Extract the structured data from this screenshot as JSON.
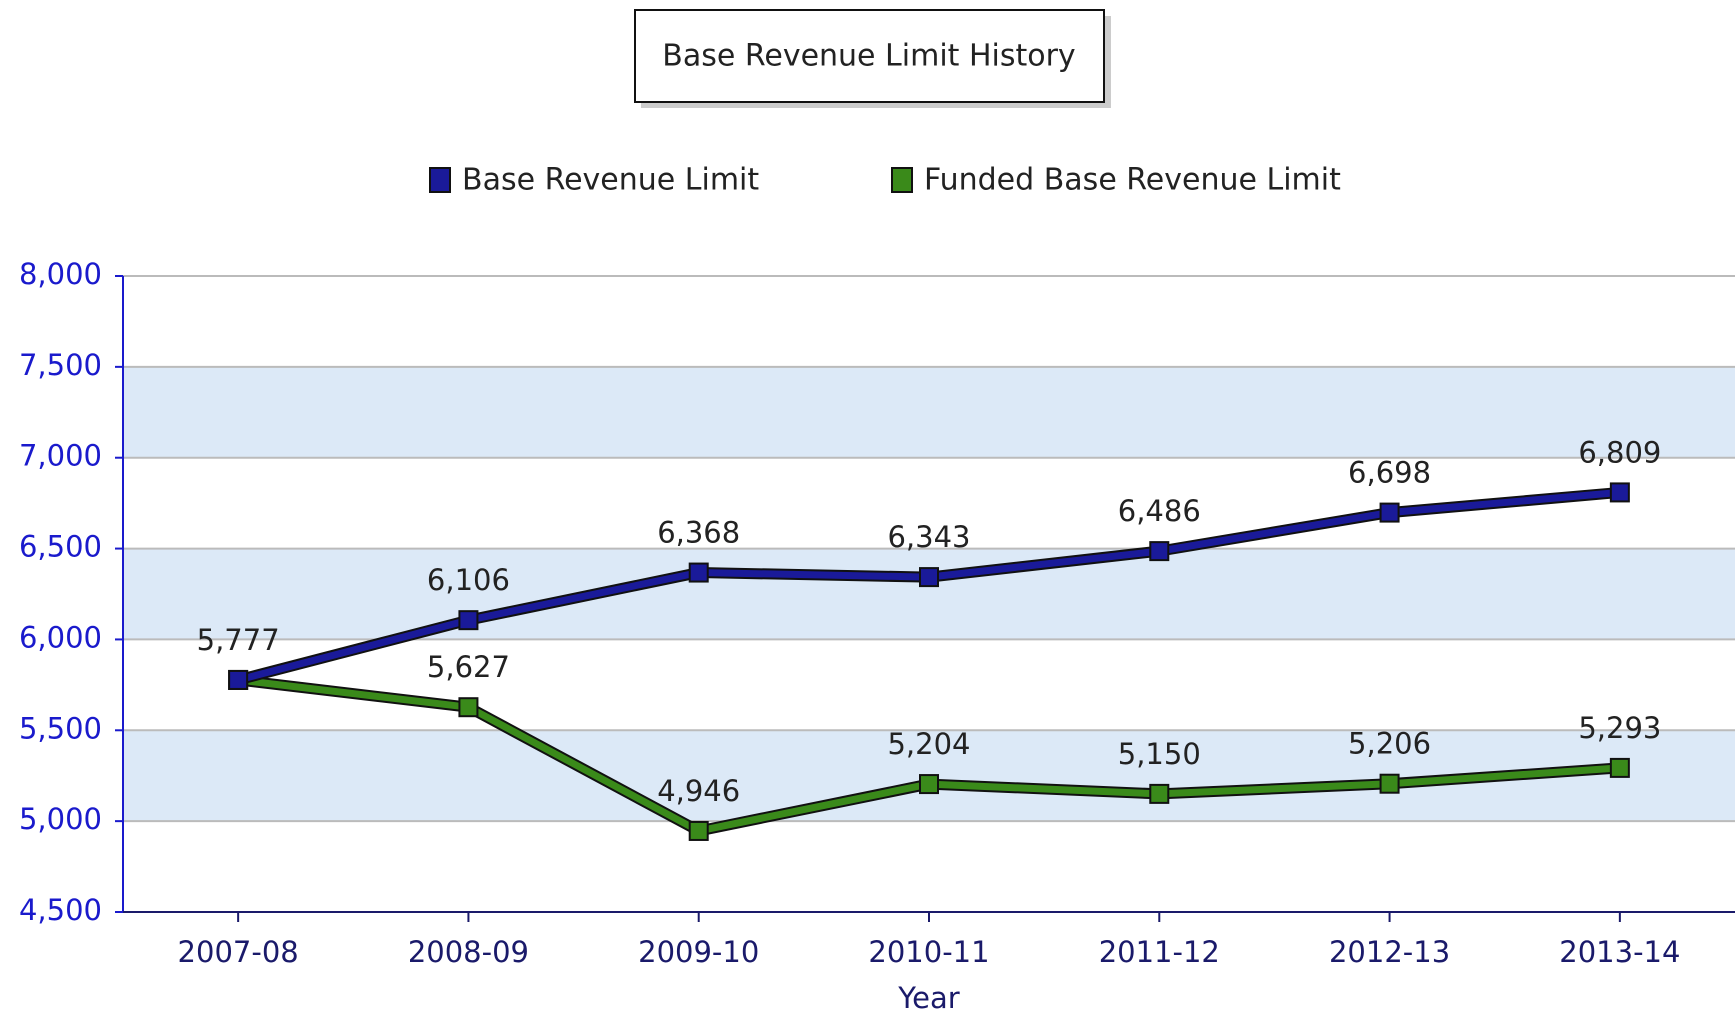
{
  "chart_data": {
    "type": "line",
    "title": "Base Revenue Limit History",
    "x_label": "Year",
    "categories": [
      "2007-08",
      "2008-09",
      "2009-10",
      "2010-11",
      "2011-12",
      "2012-13",
      "2013-14"
    ],
    "series": [
      {
        "name": "Base Revenue Limit",
        "color": "#1a1a99",
        "values": [
          5777,
          6106,
          6368,
          6343,
          6486,
          6698,
          6809
        ],
        "value_labels": [
          "5,777",
          "6,106",
          "6,368",
          "6,343",
          "6,486",
          "6,698",
          "6,809"
        ]
      },
      {
        "name": "Funded Base Revenue Limit",
        "color": "#3a8a1a",
        "values": [
          5777,
          5627,
          4946,
          5204,
          5150,
          5206,
          5293
        ],
        "value_labels": [
          null,
          "5,627",
          "4,946",
          "5,204",
          "5,150",
          "5,206",
          "5,293"
        ]
      }
    ],
    "ylim": [
      4500,
      8000
    ],
    "yticks": [
      {
        "value": 4500,
        "label": "4,500"
      },
      {
        "value": 5000,
        "label": "5,000"
      },
      {
        "value": 5500,
        "label": "5,500"
      },
      {
        "value": 6000,
        "label": "6,000"
      },
      {
        "value": 6500,
        "label": "6,500"
      },
      {
        "value": 7000,
        "label": "7,000"
      },
      {
        "value": 7500,
        "label": "7,500"
      },
      {
        "value": 8000,
        "label": "8,000"
      }
    ],
    "grid": true
  }
}
